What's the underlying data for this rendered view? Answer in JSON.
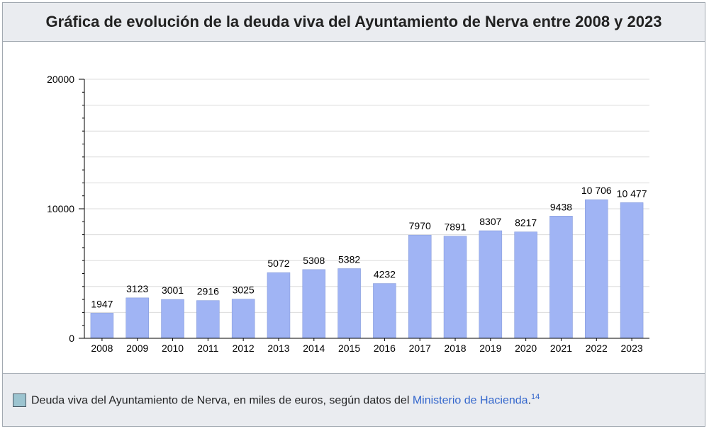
{
  "title": "Gráfica de evolución de la deuda viva del Ayuntamiento de Nerva entre 2008 y 2023",
  "caption": {
    "text": "Deuda viva del Ayuntamiento de Nerva, en miles de euros, según datos del ",
    "link_text": "Ministerio de Hacienda",
    "suffix": ".",
    "reference": "14"
  },
  "colors": {
    "bar": "#a0b4f4",
    "bar_stroke": "#7f95d6",
    "grid": "#dcdcdc",
    "axis": "#000000",
    "swatch": "#9cc4d0",
    "link": "#3366cc"
  },
  "chart_data": {
    "type": "bar",
    "categories": [
      "2008",
      "2009",
      "2010",
      "2011",
      "2012",
      "2013",
      "2014",
      "2015",
      "2016",
      "2017",
      "2018",
      "2019",
      "2020",
      "2021",
      "2022",
      "2023"
    ],
    "values": [
      1947,
      3123,
      3001,
      2916,
      3025,
      5072,
      5308,
      5382,
      4232,
      7970,
      7891,
      8307,
      8217,
      9438,
      10706,
      10477
    ],
    "value_labels": [
      "1947",
      "3123",
      "3001",
      "2916",
      "3025",
      "5072",
      "5308",
      "5382",
      "4232",
      "7970",
      "7891",
      "8307",
      "8217",
      "9438",
      "10 706",
      "10 477"
    ],
    "ylim": [
      0,
      20000
    ],
    "yticks": [
      0,
      10000,
      20000
    ],
    "ytick_labels": [
      "0",
      "10000",
      "20000"
    ],
    "grid": true,
    "legend": "below"
  }
}
